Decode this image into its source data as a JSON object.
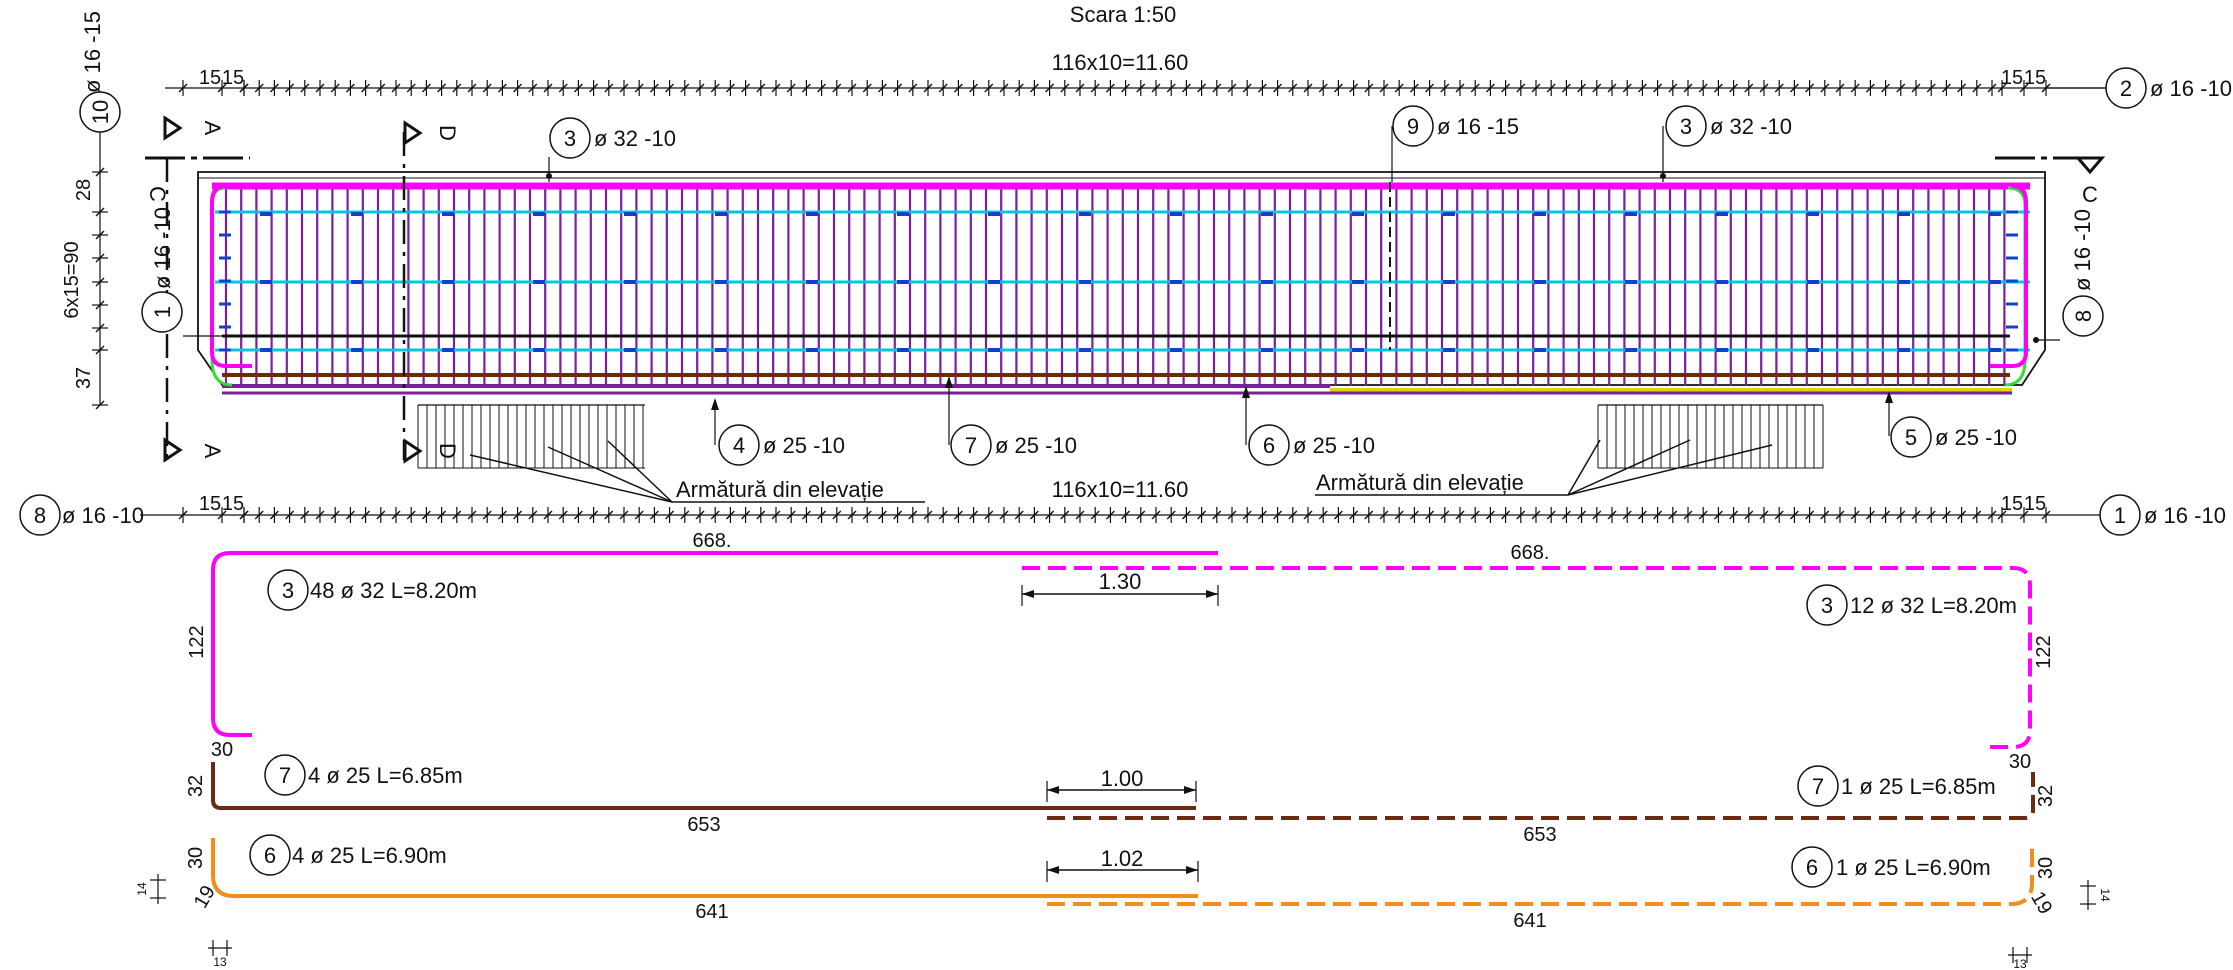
{
  "scale_label": "Scara 1:50",
  "dims": {
    "top": "116x10=11.60",
    "bottom": "116x10=11.60",
    "end_15": "15",
    "vert_6x15": "6x15=90",
    "vert_28": "28",
    "vert_37": "37"
  },
  "sections": {
    "a": "A",
    "c": "C",
    "d": "D"
  },
  "note_elevation": "Armătură din elevație",
  "callouts": {
    "c10": {
      "num": "10",
      "text": "ø 16 -15"
    },
    "c2": {
      "num": "2",
      "text": "ø 16 -10"
    },
    "c3a": {
      "num": "3",
      "text": "ø 32 -10"
    },
    "c3b": {
      "num": "3",
      "text": "ø 32 -10"
    },
    "c9": {
      "num": "9",
      "text": "ø 16 -15"
    },
    "c1l": {
      "num": "1",
      "text": "ø 16 -10"
    },
    "c8r": {
      "num": "8",
      "text": "ø 16 -10"
    },
    "c4": {
      "num": "4",
      "text": "ø 25 -10"
    },
    "c7": {
      "num": "7",
      "text": "ø 25 -10"
    },
    "c6": {
      "num": "6",
      "text": "ø 25 -10"
    },
    "c5": {
      "num": "5",
      "text": "ø 25 -10"
    },
    "c8b": {
      "num": "8",
      "text": "ø 16 -10"
    },
    "c1b": {
      "num": "1",
      "text": "ø 16 -10"
    }
  },
  "bars": {
    "b3l": {
      "num": "3",
      "text": "48 ø 32 L=8.20m",
      "len": "668.",
      "hook": "122",
      "foot": "30"
    },
    "b3r": {
      "num": "3",
      "text": "12 ø 32 L=8.20m",
      "len": "668.",
      "hook": "122",
      "foot": "30"
    },
    "lap3": "1.30",
    "b7l": {
      "num": "7",
      "text": "4 ø 25 L=6.85m",
      "len": "653",
      "hook": "32",
      "foot": "30"
    },
    "b7r": {
      "num": "7",
      "text": "1 ø 25 L=6.85m",
      "len": "653",
      "hook": "32",
      "foot": "30"
    },
    "lap7": "1.00",
    "b6l": {
      "num": "6",
      "text": "4 ø 25 L=6.90m",
      "len": "641",
      "hook": "30",
      "foot": "19"
    },
    "b6r": {
      "num": "6",
      "text": "1 ø 25 L=6.90m",
      "len": "641",
      "hook": "30",
      "foot": "19"
    },
    "lap6": "1.02",
    "small_14": "14",
    "small_13": "13"
  },
  "colors": {
    "magenta": "#ff00ff",
    "brown": "#6b2a12",
    "orange": "#f28c1a",
    "cyan": "#00c8dc",
    "purple": "#7b1fa2",
    "blue": "#1040d0",
    "green": "#33dd33",
    "yellow": "#d8d800"
  }
}
